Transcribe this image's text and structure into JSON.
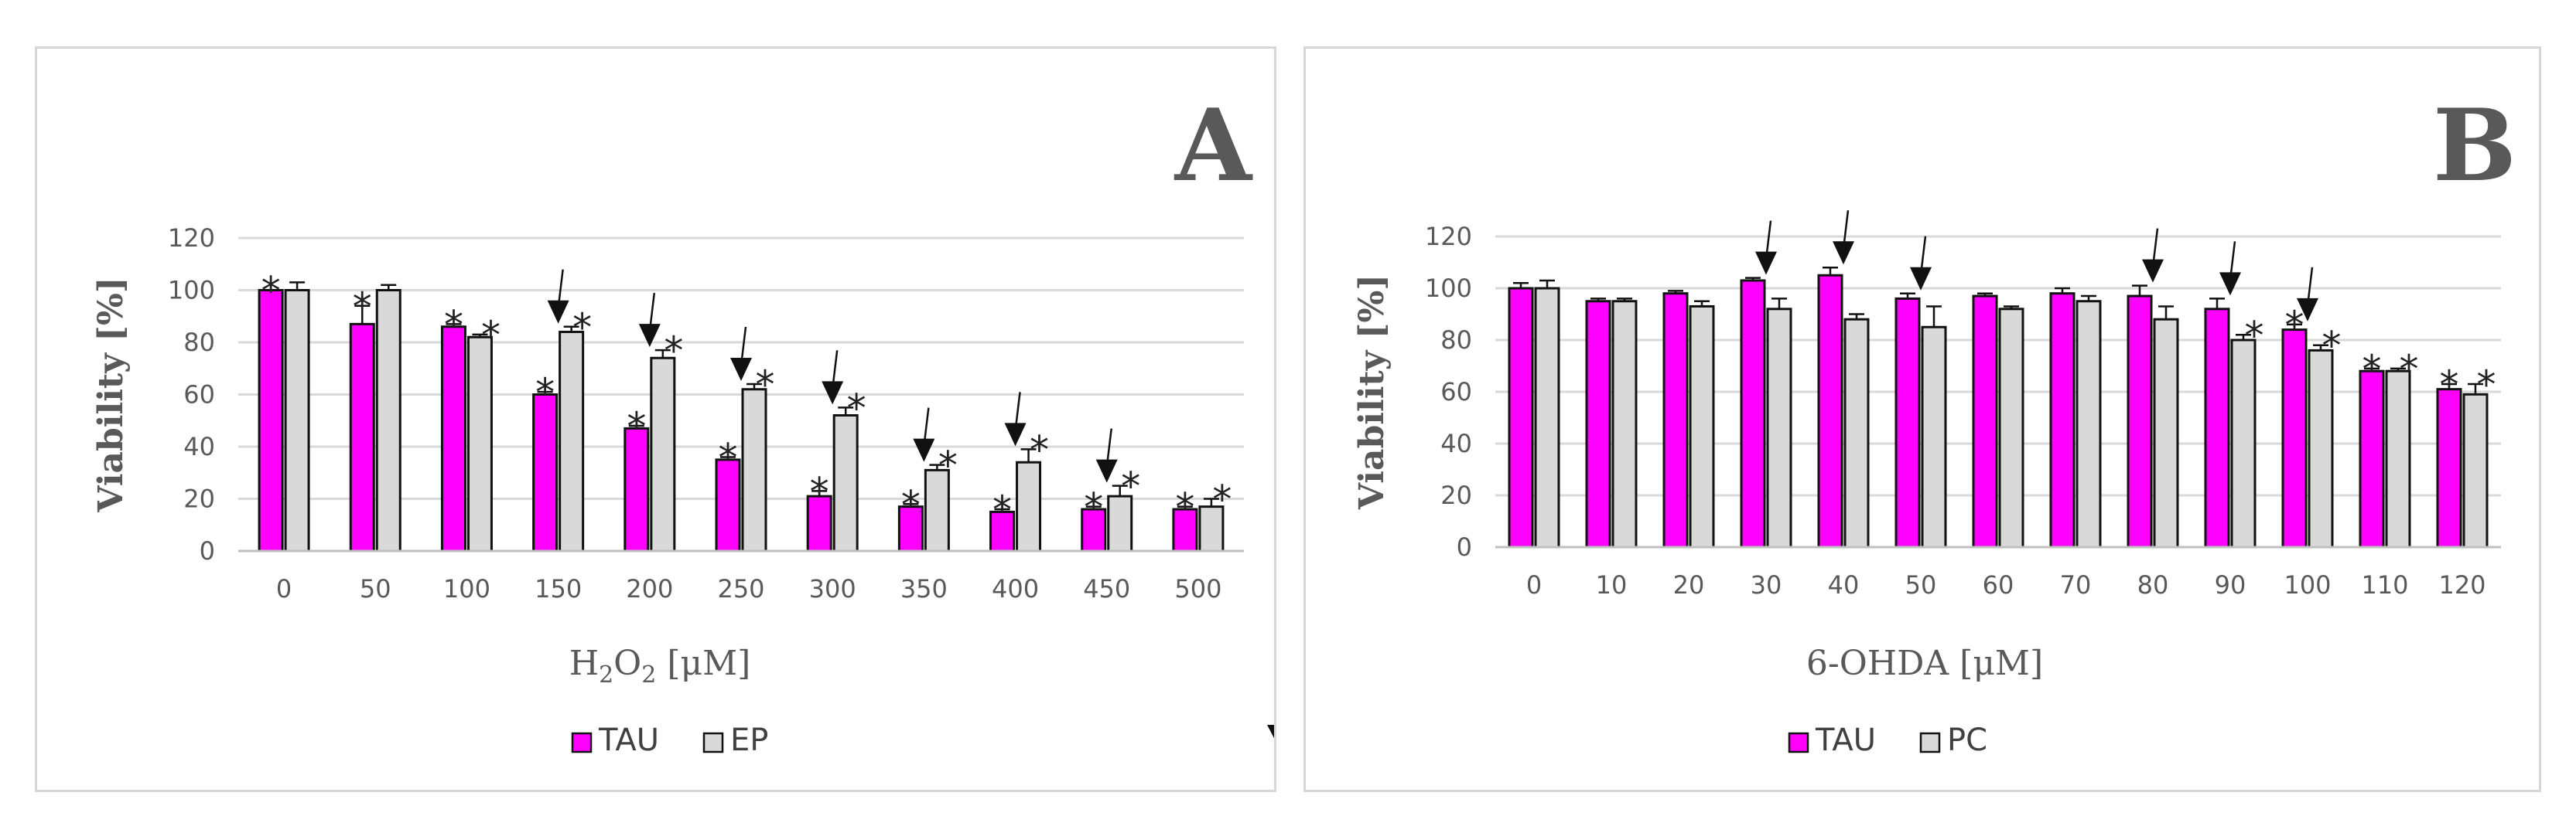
{
  "chart_data": [
    {
      "type": "bar",
      "panel_label": "A",
      "xlabel_main": "H",
      "xlabel_sub1": "2",
      "xlabel_mid": "O",
      "xlabel_sub2": "2",
      "xlabel_unit": " [μM]",
      "ylabel": "Viability [%]",
      "ylim": [
        0,
        120
      ],
      "yticks": [
        0,
        20,
        40,
        60,
        80,
        100,
        120
      ],
      "categories": [
        "0",
        "50",
        "100",
        "150",
        "200",
        "250",
        "300",
        "350",
        "400",
        "450",
        "500"
      ],
      "series": [
        {
          "name": "TAU",
          "color": "#ff00ff",
          "values": [
            100,
            87,
            86,
            60,
            47,
            35,
            21,
            17,
            15,
            16,
            16
          ],
          "errors": [
            0,
            7,
            1,
            1,
            1,
            1,
            2,
            1,
            1,
            1,
            1
          ]
        },
        {
          "name": "EP",
          "color": "#d9d9d9",
          "values": [
            100,
            100,
            82,
            84,
            74,
            62,
            52,
            31,
            34,
            21,
            17
          ],
          "errors": [
            3,
            2,
            1,
            2,
            3,
            2,
            3,
            2,
            5,
            4,
            3
          ]
        }
      ],
      "annotations": {
        "star_tau": [
          true,
          true,
          true,
          true,
          true,
          true,
          true,
          true,
          true,
          true,
          true
        ],
        "star_ep": [
          false,
          false,
          true,
          true,
          true,
          true,
          true,
          true,
          true,
          true,
          true
        ],
        "arrow": [
          false,
          false,
          false,
          true,
          true,
          true,
          true,
          true,
          true,
          true,
          false
        ]
      },
      "star_symbol": "*"
    },
    {
      "type": "bar",
      "panel_label": "B",
      "xlabel": "6-OHDA [μM]",
      "ylabel": "Viability [%]",
      "ylim": [
        0,
        120
      ],
      "yticks": [
        0,
        20,
        40,
        60,
        80,
        100,
        120
      ],
      "categories": [
        "0",
        "10",
        "20",
        "30",
        "40",
        "50",
        "60",
        "70",
        "80",
        "90",
        "100",
        "110",
        "120"
      ],
      "series": [
        {
          "name": "TAU",
          "color": "#ff00ff",
          "values": [
            100,
            95,
            98,
            103,
            105,
            96,
            97,
            98,
            97,
            92,
            84,
            68,
            61
          ],
          "errors": [
            2,
            1,
            1,
            1,
            3,
            2,
            1,
            2,
            4,
            4,
            2,
            1,
            2
          ]
        },
        {
          "name": "PC",
          "color": "#d9d9d9",
          "values": [
            100,
            95,
            93,
            92,
            88,
            85,
            92,
            95,
            88,
            80,
            76,
            68,
            59
          ],
          "errors": [
            3,
            1,
            2,
            4,
            2,
            8,
            1,
            2,
            5,
            2,
            2,
            1,
            4
          ]
        }
      ],
      "annotations": {
        "star_tau": [
          false,
          false,
          false,
          false,
          false,
          false,
          false,
          false,
          false,
          false,
          true,
          true,
          true
        ],
        "star_pc": [
          false,
          false,
          false,
          false,
          false,
          false,
          false,
          false,
          false,
          true,
          true,
          true,
          true
        ],
        "arrow": [
          false,
          false,
          false,
          true,
          true,
          true,
          false,
          false,
          true,
          true,
          true,
          false,
          false
        ]
      },
      "star_symbol": "*"
    }
  ]
}
